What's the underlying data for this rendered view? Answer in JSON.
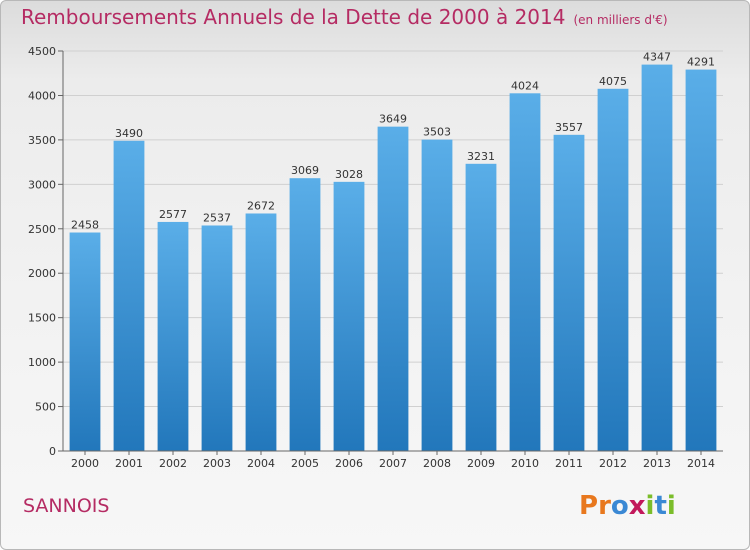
{
  "header": {
    "title": "Remboursements Annuels de la Dette de 2000 à 2014",
    "unit": "(en milliers d'€)"
  },
  "footer": {
    "city": "SANNOIS",
    "logo": [
      "P",
      "r",
      "o",
      "x",
      "i",
      "t",
      "i"
    ]
  },
  "colors": {
    "title": "#b52b63",
    "bar_top": "#5aaee8",
    "bar_bottom": "#2277bb",
    "logo": [
      "#e8781e",
      "#e8781e",
      "#3a88d4",
      "#c2185b",
      "#7bbd2a",
      "#3a88d4",
      "#7bbd2a"
    ]
  },
  "chart_data": {
    "type": "bar",
    "title": "Remboursements Annuels de la Dette de 2000 à 2014",
    "subtitle": "(en milliers d'€)",
    "categories": [
      "2000",
      "2001",
      "2002",
      "2003",
      "2004",
      "2005",
      "2006",
      "2007",
      "2008",
      "2009",
      "2010",
      "2011",
      "2012",
      "2013",
      "2014"
    ],
    "values": [
      2458,
      3490,
      2577,
      2537,
      2672,
      3069,
      3028,
      3649,
      3503,
      3231,
      4024,
      3557,
      4075,
      4347,
      4291
    ],
    "ylim": [
      0,
      4500
    ],
    "yticks": [
      0,
      500,
      1000,
      1500,
      2000,
      2500,
      3000,
      3500,
      4000,
      4500
    ],
    "grid": true,
    "data_labels": true
  }
}
